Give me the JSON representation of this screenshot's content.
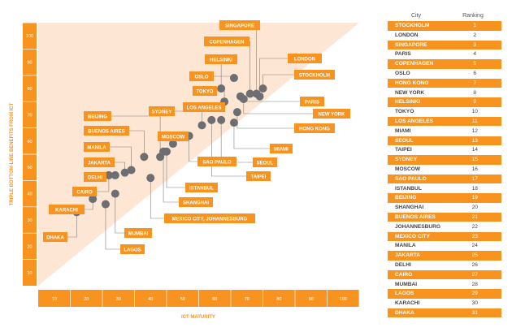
{
  "chart_data": {
    "type": "scatter",
    "xlabel": "ICT MATURITY",
    "ylabel": "TRIPLE BOTTOM-LINE BENEFITS FROM ICT",
    "xlim": [
      0,
      100
    ],
    "ylim": [
      0,
      100
    ],
    "x_ticks": [
      10,
      20,
      30,
      40,
      50,
      60,
      70,
      80,
      90,
      100
    ],
    "y_ticks": [
      10,
      20,
      30,
      40,
      50,
      60,
      70,
      80,
      90,
      100
    ],
    "points": [
      {
        "label": "DHAKA",
        "x": 12,
        "y": 28
      },
      {
        "label": "KARACHI",
        "x": 17,
        "y": 33
      },
      {
        "label": "LAGOS",
        "x": 21,
        "y": 31
      },
      {
        "label": "MUMBAI",
        "x": 24,
        "y": 35
      },
      {
        "label": "CAIRO",
        "x": 22,
        "y": 42
      },
      {
        "label": "DELHI",
        "x": 24,
        "y": 42
      },
      {
        "label": "JAKARTA",
        "x": 27,
        "y": 43
      },
      {
        "label": "MANILA",
        "x": 29,
        "y": 44
      },
      {
        "label": "BUENOS AIRES",
        "x": 33,
        "y": 49
      },
      {
        "label": "MEXICO CITY, JOHANNESBURG",
        "x": 35,
        "y": 41
      },
      {
        "label": "BEIJING",
        "x": 38,
        "y": 49
      },
      {
        "label": "SHANGHAI",
        "x": 39,
        "y": 51
      },
      {
        "label": "ISTANBUL",
        "x": 40,
        "y": 51
      },
      {
        "label": "MOSCOW",
        "x": 42,
        "y": 54
      },
      {
        "label": "SAO PAULO",
        "x": 47,
        "y": 57
      },
      {
        "label": "SYDNEY",
        "x": 51,
        "y": 61
      },
      {
        "label": "TAIPEI",
        "x": 54,
        "y": 63
      },
      {
        "label": "SEOUL",
        "x": 57,
        "y": 63
      },
      {
        "label": "MIAMI",
        "x": 61,
        "y": 62
      },
      {
        "label": "HONG KONG",
        "x": 62,
        "y": 66
      },
      {
        "label": "LOS ANGELES",
        "x": 56,
        "y": 68
      },
      {
        "label": "TOKYO",
        "x": 58,
        "y": 70
      },
      {
        "label": "PARIS",
        "x": 63,
        "y": 72
      },
      {
        "label": "NEW YORK",
        "x": 64,
        "y": 71
      },
      {
        "label": "HELSINKI",
        "x": 57,
        "y": 75
      },
      {
        "label": "OSLO",
        "x": 61,
        "y": 79
      },
      {
        "label": "COPENHAGEN",
        "x": 66,
        "y": 73
      },
      {
        "label": "SINGAPORE",
        "x": 68,
        "y": 73
      },
      {
        "label": "STOCKHOLM",
        "x": 70,
        "y": 75
      },
      {
        "label": "LONDON",
        "x": 69,
        "y": 72
      }
    ]
  },
  "ranking": {
    "headers": {
      "city": "City",
      "rank": "Ranking"
    },
    "rows": [
      {
        "city": "STOCKHOLM",
        "rank": "1"
      },
      {
        "city": "LONDON",
        "rank": "2"
      },
      {
        "city": "SINGAPORE",
        "rank": "3"
      },
      {
        "city": "PARIS",
        "rank": "4"
      },
      {
        "city": "COPENHAGEN",
        "rank": "5"
      },
      {
        "city": "OSLO",
        "rank": "6"
      },
      {
        "city": "HONG KONG",
        "rank": "7"
      },
      {
        "city": "NEW YORK",
        "rank": "8"
      },
      {
        "city": "HELSINKI",
        "rank": "9"
      },
      {
        "city": "TOKYO",
        "rank": "10"
      },
      {
        "city": "LOS ANGELES",
        "rank": "11"
      },
      {
        "city": "MIAMI",
        "rank": "12"
      },
      {
        "city": "SEOUL",
        "rank": "13"
      },
      {
        "city": "TAIPEI",
        "rank": "14"
      },
      {
        "city": "SYDNEY",
        "rank": "15"
      },
      {
        "city": "MOSCOW",
        "rank": "16"
      },
      {
        "city": "SAO PAULO",
        "rank": "17"
      },
      {
        "city": "ISTANBUL",
        "rank": "18"
      },
      {
        "city": "BEIJING",
        "rank": "19"
      },
      {
        "city": "SHANGHAI",
        "rank": "20"
      },
      {
        "city": "BUENOS AIRES",
        "rank": "21"
      },
      {
        "city": "JOHANNESBURG",
        "rank": "22"
      },
      {
        "city": "MEXICO CITY",
        "rank": "23"
      },
      {
        "city": "MANILA",
        "rank": "24"
      },
      {
        "city": "JAKARTA",
        "rank": "25"
      },
      {
        "city": "DELHI",
        "rank": "26"
      },
      {
        "city": "CAIRO",
        "rank": "27"
      },
      {
        "city": "MUMBAI",
        "rank": "28"
      },
      {
        "city": "LAGOS",
        "rank": "29"
      },
      {
        "city": "KARACHI",
        "rank": "30"
      },
      {
        "city": "DHAKA",
        "rank": "31"
      }
    ]
  },
  "colors": {
    "accent": "#f7931e",
    "triangle": "#fde6d4",
    "marker": "#6d6e71",
    "leader": "#808080",
    "label_text": "#ffffff"
  }
}
